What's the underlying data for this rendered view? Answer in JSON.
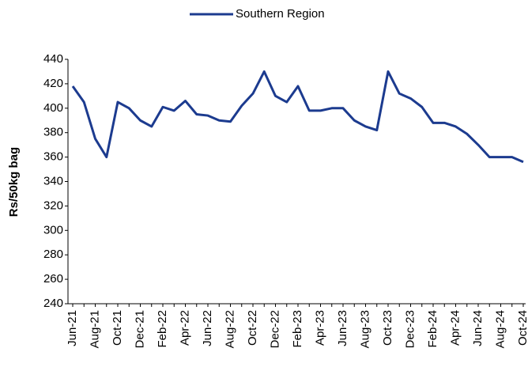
{
  "chart_data": {
    "type": "line",
    "y_label": "Rs/50kg bag",
    "categories": [
      "Jun-21",
      null,
      "Aug-21",
      null,
      "Oct-21",
      null,
      "Dec-21",
      null,
      "Feb-22",
      null,
      "Apr-22",
      null,
      "Jun-22",
      null,
      "Aug-22",
      null,
      "Oct-22",
      null,
      "Dec-22",
      null,
      "Feb-23",
      null,
      "Apr-23",
      null,
      "Jun-23",
      null,
      "Aug-23",
      null,
      "Oct-23",
      null,
      "Dec-23",
      null,
      "Feb-24",
      null,
      "Apr-24",
      null,
      "Jun-24",
      null,
      "Aug-24",
      null,
      "Oct-24"
    ],
    "series": [
      {
        "name": "Southern Region",
        "color": "#1c3b8f",
        "values": [
          418,
          405,
          375,
          360,
          405,
          400,
          390,
          385,
          401,
          398,
          406,
          395,
          394,
          390,
          389,
          402,
          412,
          430,
          410,
          405,
          418,
          398,
          398,
          400,
          400,
          390,
          385,
          382,
          430,
          412,
          408,
          401,
          388,
          388,
          385,
          379,
          370,
          360,
          360,
          360,
          356
        ]
      }
    ],
    "ylim": [
      240,
      440
    ],
    "yticks": [
      240,
      260,
      280,
      300,
      320,
      340,
      360,
      380,
      400,
      420,
      440
    ],
    "legend": "top"
  }
}
